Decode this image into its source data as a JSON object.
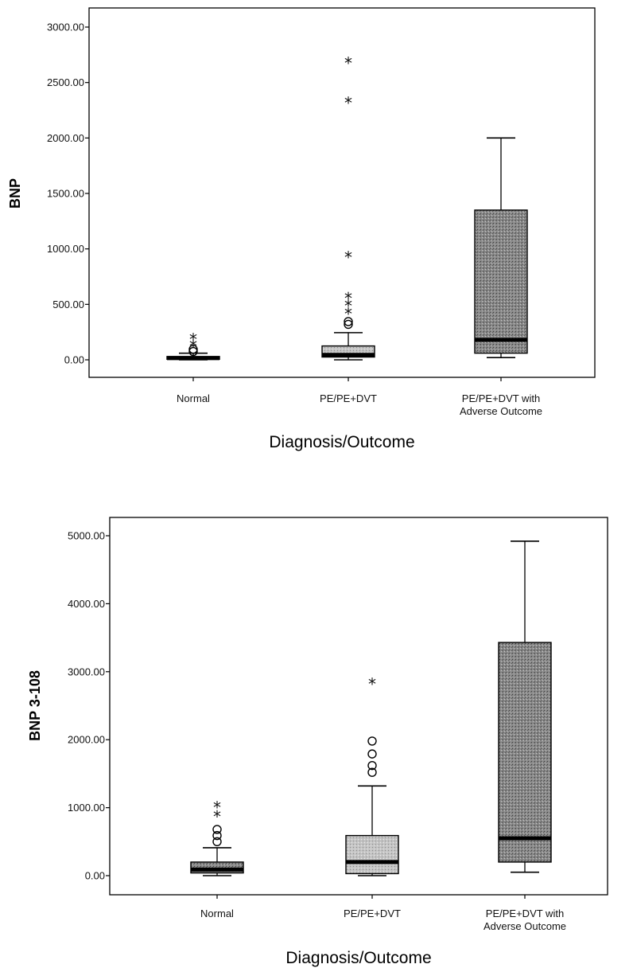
{
  "chart_data": [
    {
      "type": "boxplot",
      "title": "",
      "ylabel": "BNP",
      "xlabel": "Diagnosis/Outcome",
      "ylim": [
        0,
        3000
      ],
      "yticks": [
        0,
        500,
        1000,
        1500,
        2000,
        2500,
        3000
      ],
      "ytick_labels": [
        "0.00",
        "500.00",
        "1000.00",
        "1500.00",
        "2000.00",
        "2500.00",
        "3000.00"
      ],
      "grid": false,
      "categories": [
        {
          "label": "Normal",
          "label_lines": [
            "Normal"
          ]
        },
        {
          "label": "PE/PE+DVT",
          "label_lines": [
            "PE/PE+DVT"
          ]
        },
        {
          "label": "PE/PE+DVT with Adverse Outcome",
          "label_lines": [
            "PE/PE+DVT with",
            "Adverse Outcome"
          ]
        }
      ],
      "boxes": [
        {
          "min": 0,
          "q1": 5,
          "median": 15,
          "q3": 30,
          "max": 60,
          "outliers_circle": [
            75,
            95
          ],
          "outliers_star": [
            130,
            190
          ]
        },
        {
          "min": 0,
          "q1": 25,
          "median": 45,
          "q3": 125,
          "max": 245,
          "outliers_circle": [
            320,
            345
          ],
          "outliers_star": [
            420,
            490,
            560,
            930,
            2320,
            2680
          ]
        },
        {
          "min": 20,
          "q1": 60,
          "median": 180,
          "q3": 1350,
          "max": 2000,
          "outliers_circle": [],
          "outliers_star": []
        }
      ]
    },
    {
      "type": "boxplot",
      "title": "",
      "ylabel": "BNP 3-108",
      "xlabel": "Diagnosis/Outcome",
      "ylim": [
        0,
        5000
      ],
      "yticks": [
        0,
        1000,
        2000,
        3000,
        4000,
        5000
      ],
      "ytick_labels": [
        "0.00",
        "1000.00",
        "2000.00",
        "3000.00",
        "4000.00",
        "5000.00"
      ],
      "grid": false,
      "categories": [
        {
          "label": "Normal",
          "label_lines": [
            "Normal"
          ]
        },
        {
          "label": "PE/PE+DVT",
          "label_lines": [
            "PE/PE+DVT"
          ]
        },
        {
          "label": "PE/PE+DVT with Adverse Outcome",
          "label_lines": [
            "PE/PE+DVT with",
            "Adverse Outcome"
          ]
        }
      ],
      "boxes": [
        {
          "min": 0,
          "q1": 40,
          "median": 90,
          "q3": 200,
          "max": 410,
          "outliers_circle": [
            500,
            590,
            680
          ],
          "outliers_star": [
            880,
            1010
          ]
        },
        {
          "min": 0,
          "q1": 30,
          "median": 200,
          "q3": 590,
          "max": 1320,
          "outliers_circle": [
            1520,
            1620,
            1790,
            1980
          ],
          "outliers_star": [
            2830
          ]
        },
        {
          "min": 50,
          "q1": 200,
          "median": 550,
          "q3": 3430,
          "max": 4920,
          "outliers_circle": [],
          "outliers_star": []
        }
      ]
    }
  ]
}
